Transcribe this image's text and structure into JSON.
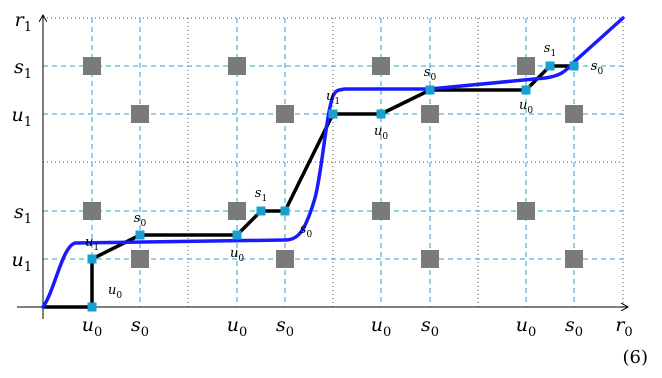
{
  "axes": {
    "y_top_label": {
      "main": "r",
      "sub": "1"
    },
    "x_end_label": {
      "main": "r",
      "sub": "0"
    },
    "y_ticks": [
      {
        "main": "s",
        "sub": "1"
      },
      {
        "main": "u",
        "sub": "1"
      },
      {
        "main": "s",
        "sub": "1"
      },
      {
        "main": "u",
        "sub": "1"
      }
    ],
    "x_ticks": [
      {
        "main": "u",
        "sub": "0"
      },
      {
        "main": "s",
        "sub": "0"
      },
      {
        "main": "u",
        "sub": "0"
      },
      {
        "main": "s",
        "sub": "0"
      },
      {
        "main": "u",
        "sub": "0"
      },
      {
        "main": "s",
        "sub": "0"
      },
      {
        "main": "u",
        "sub": "0"
      },
      {
        "main": "s",
        "sub": "0"
      },
      {
        "main": "r",
        "sub": "0"
      }
    ]
  },
  "path_labels": [
    {
      "main": "u",
      "sub": "0"
    },
    {
      "main": "u",
      "sub": "1"
    },
    {
      "main": "s",
      "sub": "0"
    },
    {
      "main": "u",
      "sub": "0"
    },
    {
      "main": "s",
      "sub": "1"
    },
    {
      "main": "s",
      "sub": "0"
    },
    {
      "main": "u",
      "sub": "1"
    },
    {
      "main": "u",
      "sub": "0"
    },
    {
      "main": "s",
      "sub": "0"
    },
    {
      "main": "u",
      "sub": "0"
    },
    {
      "main": "s",
      "sub": "1"
    },
    {
      "main": "s",
      "sub": "0"
    }
  ],
  "equation_number": "(6)",
  "colors": {
    "grid_dashed": "#29a3c6",
    "grid_dotted": "#555555",
    "gray_squares": "#7a7a7a",
    "path_black": "#000000",
    "path_blue": "#1a1aff",
    "nodes": "#1aa0d0"
  }
}
